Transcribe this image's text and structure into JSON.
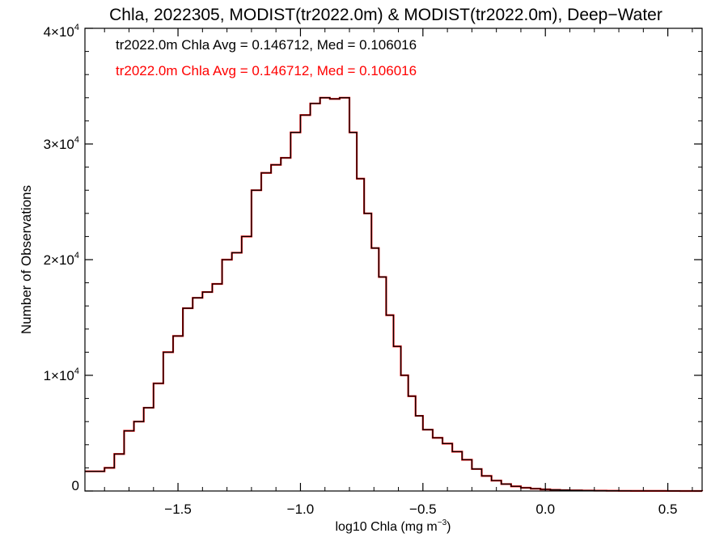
{
  "chart_data": {
    "type": "line",
    "style": "step-histogram",
    "title": "Chla, 2022305, MODIST(tr2022.0m) & MODIST(tr2022.0m), Deep−Water",
    "xlabel": "log10 Chla (mg m",
    "xlabel_sup": "−3",
    "xlabel_close": ")",
    "ylabel": "Number of Observations",
    "xlim": [
      -1.88,
      0.64
    ],
    "ylim": [
      0,
      40000
    ],
    "grid": false,
    "x_ticks": [
      {
        "value": -1.5,
        "label": "−1.5"
      },
      {
        "value": -1.0,
        "label": "−1.0"
      },
      {
        "value": -0.5,
        "label": "−0.5"
      },
      {
        "value": 0.0,
        "label": "0.0"
      },
      {
        "value": 0.5,
        "label": "0.5"
      }
    ],
    "y_ticks": [
      {
        "value": 0,
        "base": "0",
        "exp": ""
      },
      {
        "value": 10000,
        "base": "1×10",
        "exp": "4"
      },
      {
        "value": 20000,
        "base": "2×10",
        "exp": "4"
      },
      {
        "value": 30000,
        "base": "3×10",
        "exp": "4"
      },
      {
        "value": 40000,
        "base": "4×10",
        "exp": "4"
      }
    ],
    "annotations": [
      {
        "text": "tr2022.0m Chla Avg = 0.146712, Med = 0.106016",
        "color": "#000000"
      },
      {
        "text": "tr2022.0m Chla Avg = 0.146712, Med = 0.106016",
        "color": "#ff0000"
      }
    ],
    "series": [
      {
        "color": "#ff0000",
        "x": [
          -1.88,
          -1.8,
          -1.76,
          -1.72,
          -1.68,
          -1.64,
          -1.6,
          -1.56,
          -1.52,
          -1.48,
          -1.44,
          -1.4,
          -1.36,
          -1.32,
          -1.28,
          -1.24,
          -1.2,
          -1.16,
          -1.12,
          -1.08,
          -1.04,
          -1.0,
          -0.96,
          -0.92,
          -0.88,
          -0.84,
          -0.8,
          -0.77,
          -0.74,
          -0.71,
          -0.68,
          -0.65,
          -0.62,
          -0.59,
          -0.56,
          -0.53,
          -0.5,
          -0.46,
          -0.42,
          -0.38,
          -0.34,
          -0.3,
          -0.26,
          -0.22,
          -0.18,
          -0.14,
          -0.1,
          -0.06,
          -0.02,
          0.02,
          0.06,
          0.1,
          0.15,
          0.2,
          0.25,
          0.3,
          0.35,
          0.4,
          0.45,
          0.5,
          0.55,
          0.6,
          0.64
        ],
        "values": [
          1700,
          2000,
          3200,
          5200,
          6000,
          7200,
          9300,
          12000,
          13400,
          15800,
          16700,
          17200,
          17900,
          20000,
          20600,
          22000,
          26000,
          27500,
          28200,
          28800,
          31000,
          32500,
          33500,
          34000,
          33900,
          34000,
          31000,
          27000,
          24000,
          21000,
          18500,
          15200,
          12500,
          10000,
          8200,
          6500,
          5300,
          4600,
          4100,
          3400,
          2700,
          1900,
          1300,
          900,
          600,
          400,
          280,
          200,
          140,
          100,
          75,
          55,
          40,
          30,
          22,
          15,
          10,
          8,
          6,
          4,
          2,
          1,
          0
        ]
      },
      {
        "color": "#000000",
        "x": [
          -1.88,
          -1.8,
          -1.76,
          -1.72,
          -1.68,
          -1.64,
          -1.6,
          -1.56,
          -1.52,
          -1.48,
          -1.44,
          -1.4,
          -1.36,
          -1.32,
          -1.28,
          -1.24,
          -1.2,
          -1.16,
          -1.12,
          -1.08,
          -1.04,
          -1.0,
          -0.96,
          -0.92,
          -0.88,
          -0.84,
          -0.8,
          -0.77,
          -0.74,
          -0.71,
          -0.68,
          -0.65,
          -0.62,
          -0.59,
          -0.56,
          -0.53,
          -0.5,
          -0.46,
          -0.42,
          -0.38,
          -0.34,
          -0.3,
          -0.26,
          -0.22,
          -0.18,
          -0.14,
          -0.1,
          -0.06,
          -0.02,
          0.02,
          0.06,
          0.1,
          0.15,
          0.2,
          0.25,
          0.3,
          0.35,
          0.4,
          0.45,
          0.5,
          0.55,
          0.6,
          0.64
        ],
        "values": [
          1700,
          2000,
          3200,
          5200,
          6000,
          7200,
          9300,
          12000,
          13400,
          15800,
          16700,
          17200,
          17900,
          20000,
          20600,
          22000,
          26000,
          27500,
          28200,
          28800,
          31000,
          32500,
          33500,
          34000,
          33900,
          34000,
          31000,
          27000,
          24000,
          21000,
          18500,
          15200,
          12500,
          10000,
          8200,
          6500,
          5300,
          4600,
          4100,
          3400,
          2700,
          1900,
          1300,
          900,
          600,
          400,
          280,
          200,
          140,
          100,
          75,
          55,
          40,
          30,
          22,
          15,
          10,
          8,
          6,
          4,
          2,
          1,
          0
        ]
      }
    ]
  }
}
